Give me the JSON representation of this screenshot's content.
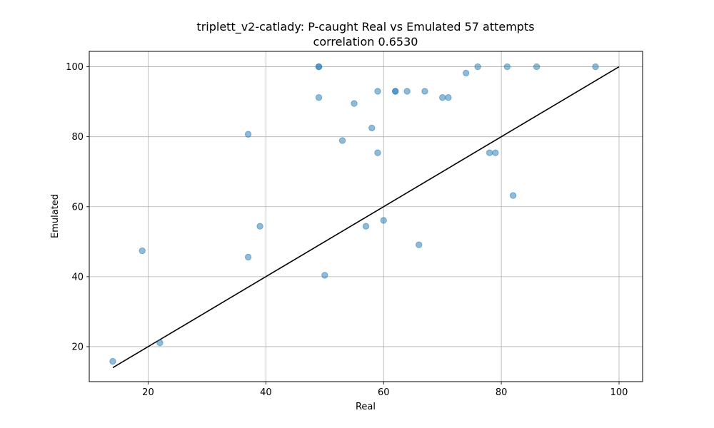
{
  "chart_data": {
    "type": "scatter",
    "title_line1": "triplett_v2-catlady: P-caught Real vs Emulated 57 attempts",
    "title_line2": "correlation 0.6530",
    "xlabel": "Real",
    "ylabel": "Emulated",
    "xlim": [
      10,
      104
    ],
    "ylim": [
      10,
      104.4
    ],
    "xticks": [
      20,
      40,
      60,
      80,
      100
    ],
    "yticks": [
      20,
      40,
      60,
      80,
      100
    ],
    "xtick_labels": [
      "20",
      "40",
      "60",
      "80",
      "100"
    ],
    "ytick_labels": [
      "20",
      "40",
      "60",
      "80",
      "100"
    ],
    "grid": true,
    "point_color": "#1f77b4",
    "point_alpha": 0.5,
    "line_color": "#000000",
    "reference_line": {
      "x": [
        14,
        100
      ],
      "y": [
        14,
        100
      ]
    },
    "points": [
      {
        "x": 14,
        "y": 15.8
      },
      {
        "x": 19,
        "y": 47.4
      },
      {
        "x": 22,
        "y": 21.1
      },
      {
        "x": 37,
        "y": 80.7
      },
      {
        "x": 37,
        "y": 45.6
      },
      {
        "x": 39,
        "y": 54.4
      },
      {
        "x": 49,
        "y": 100
      },
      {
        "x": 49,
        "y": 100
      },
      {
        "x": 49,
        "y": 91.2
      },
      {
        "x": 50,
        "y": 40.4
      },
      {
        "x": 53,
        "y": 78.9
      },
      {
        "x": 55,
        "y": 89.5
      },
      {
        "x": 57,
        "y": 54.4
      },
      {
        "x": 58,
        "y": 82.5
      },
      {
        "x": 59,
        "y": 93.0
      },
      {
        "x": 59,
        "y": 75.4
      },
      {
        "x": 60,
        "y": 56.1
      },
      {
        "x": 62,
        "y": 93.0
      },
      {
        "x": 62,
        "y": 93.0
      },
      {
        "x": 64,
        "y": 93.0
      },
      {
        "x": 66,
        "y": 49.1
      },
      {
        "x": 67,
        "y": 93.0
      },
      {
        "x": 70,
        "y": 91.2
      },
      {
        "x": 71,
        "y": 91.2
      },
      {
        "x": 74,
        "y": 98.2
      },
      {
        "x": 76,
        "y": 100
      },
      {
        "x": 78,
        "y": 75.4
      },
      {
        "x": 79,
        "y": 75.4
      },
      {
        "x": 81,
        "y": 100
      },
      {
        "x": 82,
        "y": 63.2
      },
      {
        "x": 86,
        "y": 100
      },
      {
        "x": 96,
        "y": 100
      }
    ]
  }
}
